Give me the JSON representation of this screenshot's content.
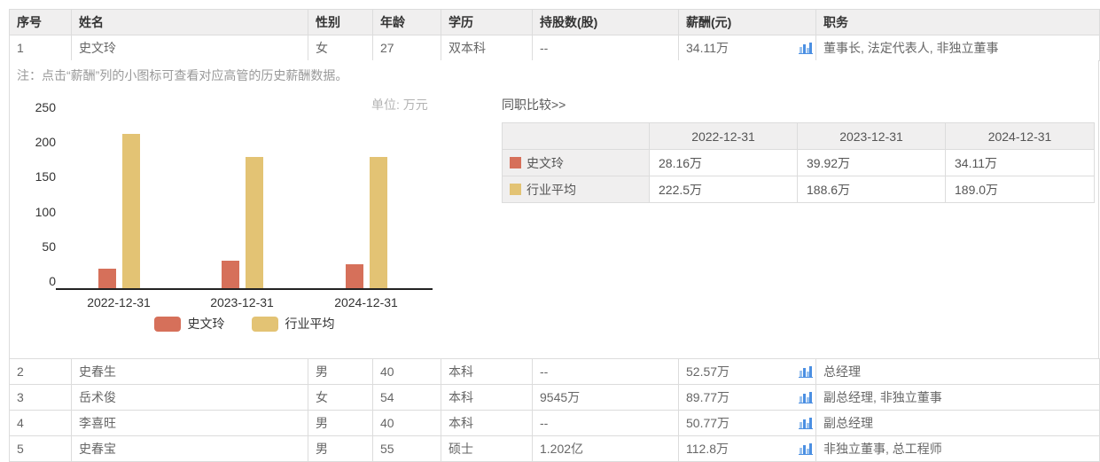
{
  "table": {
    "headers": [
      "序号",
      "姓名",
      "性别",
      "年龄",
      "学历",
      "持股数(股)",
      "薪酬(元)",
      "职务"
    ],
    "rows": [
      {
        "no": "1",
        "name": "史文玲",
        "gender": "女",
        "age": "27",
        "edu": "双本科",
        "shares": "--",
        "salary": "34.11万",
        "title": "董事长, 法定代表人, 非独立董事"
      },
      {
        "no": "2",
        "name": "史春生",
        "gender": "男",
        "age": "40",
        "edu": "本科",
        "shares": "--",
        "salary": "52.57万",
        "title": "总经理"
      },
      {
        "no": "3",
        "name": "岳术俊",
        "gender": "女",
        "age": "54",
        "edu": "本科",
        "shares": "9545万",
        "salary": "89.77万",
        "title": "副总经理, 非独立董事"
      },
      {
        "no": "4",
        "name": "李喜旺",
        "gender": "男",
        "age": "40",
        "edu": "本科",
        "shares": "--",
        "salary": "50.77万",
        "title": "副总经理"
      },
      {
        "no": "5",
        "name": "史春宝",
        "gender": "男",
        "age": "55",
        "edu": "硕士",
        "shares": "1.202亿",
        "salary": "112.8万",
        "title": "非独立董事, 总工程师"
      }
    ]
  },
  "note": "注：点击“薪酬”列的小图标可查看对应高管的历史薪酬数据。",
  "chart_data": {
    "type": "bar",
    "title": "",
    "unit_label": "单位: 万元",
    "categories": [
      "2022-12-31",
      "2023-12-31",
      "2024-12-31"
    ],
    "series": [
      {
        "name": "史文玲",
        "color": "#d6705a",
        "values": [
          28.16,
          39.92,
          34.11
        ]
      },
      {
        "name": "行业平均",
        "color": "#e3c374",
        "values": [
          222.5,
          188.6,
          189.0
        ]
      }
    ],
    "ylim": [
      0,
      250
    ],
    "yticks": [
      0,
      50,
      100,
      150,
      200,
      250
    ],
    "grid": false,
    "legend_position": "bottom"
  },
  "comparison": {
    "title": "同职比较>>",
    "columns": [
      "2022-12-31",
      "2023-12-31",
      "2024-12-31"
    ],
    "rows": [
      {
        "name": "史文玲",
        "color": "#d6705a",
        "values": [
          "28.16万",
          "39.92万",
          "34.11万"
        ]
      },
      {
        "name": "行业平均",
        "color": "#e3c374",
        "values": [
          "222.5万",
          "188.6万",
          "189.0万"
        ]
      }
    ]
  },
  "icons": {
    "salary_history": "bar-chart-icon"
  },
  "colors": {
    "header_bg": "#f0efef",
    "border": "#dcdcdc",
    "icon_blue_dark": "#4b8fe2",
    "icon_blue_light": "#9cc3ef",
    "axis": "#222222"
  }
}
